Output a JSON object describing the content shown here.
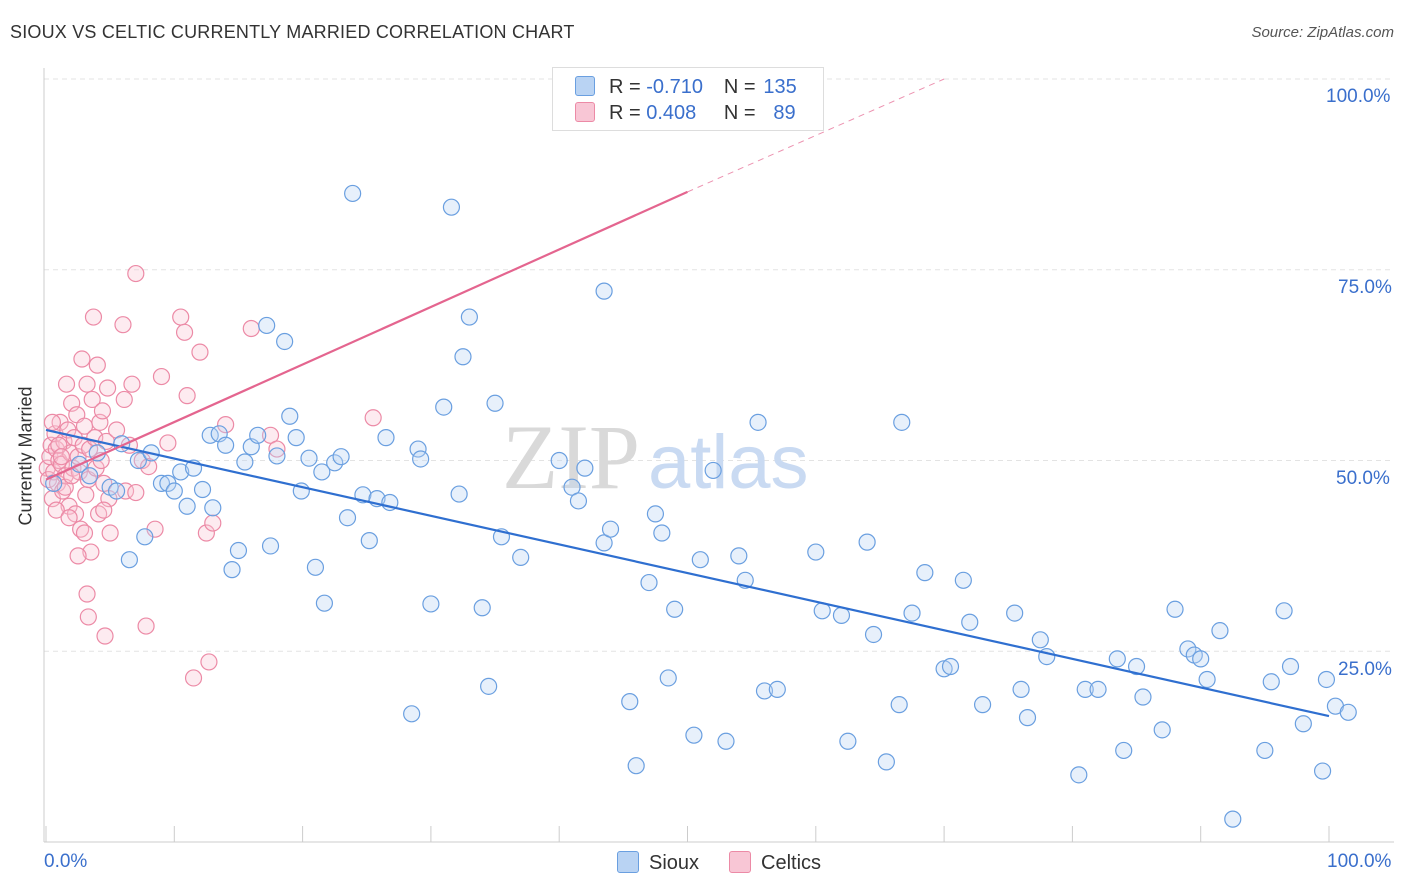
{
  "title": "SIOUX VS CELTIC CURRENTLY MARRIED CORRELATION CHART",
  "source": "Source: ZipAtlas.com",
  "watermark": {
    "zip": "ZIP",
    "atlas": "atlas"
  },
  "legend": {
    "series": [
      {
        "name": "Sioux",
        "r_label": "R =",
        "r_value": "-0.710",
        "n_label": "N =",
        "n_value": "135",
        "color": "#6a9fe0"
      },
      {
        "name": "Celtics",
        "r_label": "R =",
        "r_value": "0.408",
        "n_label": "N =",
        "n_value": "89",
        "color": "#ec8aa6"
      }
    ]
  },
  "chart_data": {
    "type": "scatter",
    "title": "SIOUX VS CELTIC CURRENTLY MARRIED CORRELATION CHART",
    "xlabel": "",
    "ylabel": "Currently Married",
    "xlim": [
      0,
      100
    ],
    "ylim": [
      0,
      100
    ],
    "x_tick_labels": [
      "0.0%",
      "100.0%"
    ],
    "y_tick_labels": [
      {
        "value": 100,
        "label": "100.0%"
      },
      {
        "value": 75,
        "label": "75.0%"
      },
      {
        "value": 50,
        "label": "50.0%"
      },
      {
        "value": 25,
        "label": "25.0%"
      }
    ],
    "series": [
      {
        "name": "Sioux",
        "color": "#6a9fe0",
        "trend": {
          "x1": 0,
          "y1": 54,
          "x2": 100,
          "y2": 16.5,
          "color": "#2f6fd0"
        },
        "points": [
          [
            0.6,
            47.0
          ],
          [
            2.6,
            49.5
          ],
          [
            3.4,
            48.0
          ],
          [
            4.0,
            51.0
          ],
          [
            5.0,
            46.5
          ],
          [
            5.5,
            46.0
          ],
          [
            5.9,
            52.2
          ],
          [
            6.5,
            37.0
          ],
          [
            7.2,
            50.0
          ],
          [
            7.7,
            40.0
          ],
          [
            8.2,
            51.0
          ],
          [
            9.0,
            47.0
          ],
          [
            9.5,
            47.0
          ],
          [
            10.0,
            46.0
          ],
          [
            10.5,
            48.5
          ],
          [
            11.0,
            44.0
          ],
          [
            11.5,
            49.0
          ],
          [
            12.2,
            46.2
          ],
          [
            12.8,
            53.3
          ],
          [
            13.0,
            43.8
          ],
          [
            13.5,
            53.5
          ],
          [
            14.0,
            52.0
          ],
          [
            14.5,
            35.7
          ],
          [
            15.0,
            38.2
          ],
          [
            15.5,
            49.8
          ],
          [
            16.0,
            51.8
          ],
          [
            16.5,
            53.3
          ],
          [
            17.2,
            67.7
          ],
          [
            17.5,
            38.8
          ],
          [
            18.0,
            50.6
          ],
          [
            18.6,
            65.6
          ],
          [
            19.0,
            55.8
          ],
          [
            19.5,
            53.0
          ],
          [
            19.9,
            46.0
          ],
          [
            20.5,
            50.3
          ],
          [
            21.0,
            36.0
          ],
          [
            21.5,
            48.5
          ],
          [
            21.7,
            31.3
          ],
          [
            22.5,
            49.7
          ],
          [
            23.0,
            50.5
          ],
          [
            23.5,
            42.5
          ],
          [
            23.9,
            85.0
          ],
          [
            24.7,
            45.5
          ],
          [
            25.2,
            39.5
          ],
          [
            25.8,
            45.0
          ],
          [
            26.5,
            53.0
          ],
          [
            26.8,
            44.5
          ],
          [
            28.5,
            16.8
          ],
          [
            29.0,
            51.5
          ],
          [
            29.2,
            50.2
          ],
          [
            30.0,
            31.2
          ],
          [
            31.0,
            57.0
          ],
          [
            31.6,
            83.2
          ],
          [
            32.2,
            45.6
          ],
          [
            32.5,
            63.6
          ],
          [
            33.0,
            68.8
          ],
          [
            34.0,
            30.7
          ],
          [
            34.5,
            20.4
          ],
          [
            35.0,
            57.5
          ],
          [
            35.5,
            40.0
          ],
          [
            37.0,
            37.3
          ],
          [
            40.0,
            50.0
          ],
          [
            41.0,
            46.5
          ],
          [
            41.5,
            44.7
          ],
          [
            42.0,
            49.0
          ],
          [
            43.5,
            72.2
          ],
          [
            43.5,
            39.2
          ],
          [
            44.0,
            41.0
          ],
          [
            45.5,
            18.4
          ],
          [
            46.0,
            10.0
          ],
          [
            47.0,
            34.0
          ],
          [
            47.5,
            43.0
          ],
          [
            48.0,
            40.5
          ],
          [
            48.5,
            21.5
          ],
          [
            49.0,
            30.5
          ],
          [
            50.5,
            14.0
          ],
          [
            51.0,
            37.0
          ],
          [
            52.0,
            48.7
          ],
          [
            53.0,
            13.2
          ],
          [
            54.0,
            37.5
          ],
          [
            54.5,
            34.3
          ],
          [
            55.5,
            55.0
          ],
          [
            56.0,
            19.8
          ],
          [
            57.0,
            20.0
          ],
          [
            60.0,
            38.0
          ],
          [
            60.5,
            30.3
          ],
          [
            62.0,
            29.7
          ],
          [
            62.5,
            13.2
          ],
          [
            64.0,
            39.3
          ],
          [
            64.5,
            27.2
          ],
          [
            65.5,
            10.5
          ],
          [
            66.5,
            18.0
          ],
          [
            66.7,
            55.0
          ],
          [
            67.5,
            30.0
          ],
          [
            68.5,
            35.3
          ],
          [
            70.0,
            22.7
          ],
          [
            70.5,
            23.0
          ],
          [
            71.5,
            34.3
          ],
          [
            72.0,
            28.8
          ],
          [
            73.0,
            18.0
          ],
          [
            75.5,
            30.0
          ],
          [
            76.0,
            20.0
          ],
          [
            76.5,
            16.3
          ],
          [
            77.5,
            26.5
          ],
          [
            78.0,
            24.3
          ],
          [
            80.5,
            8.8
          ],
          [
            81.0,
            20.0
          ],
          [
            82.0,
            20.0
          ],
          [
            83.5,
            24.0
          ],
          [
            84.0,
            12.0
          ],
          [
            85.0,
            23.0
          ],
          [
            85.5,
            19.0
          ],
          [
            87.0,
            14.7
          ],
          [
            88.0,
            30.5
          ],
          [
            89.0,
            25.3
          ],
          [
            89.5,
            24.5
          ],
          [
            90.0,
            24.0
          ],
          [
            90.5,
            21.3
          ],
          [
            91.5,
            27.7
          ],
          [
            92.5,
            3.0
          ],
          [
            95.0,
            12.0
          ],
          [
            95.5,
            21.0
          ],
          [
            96.5,
            30.3
          ],
          [
            97.0,
            23.0
          ],
          [
            98.0,
            15.5
          ],
          [
            99.5,
            9.3
          ],
          [
            99.8,
            21.3
          ],
          [
            100.5,
            17.8
          ],
          [
            101.5,
            17.0
          ]
        ]
      },
      {
        "name": "Celtics",
        "color": "#ec8aa6",
        "trend": {
          "x1": 0,
          "y1": 47.5,
          "x2": 50,
          "y2": 85.2,
          "dash_x2": 70,
          "dash_y2": 100,
          "color": "#e4658f"
        },
        "points": [
          [
            0.1,
            49.0
          ],
          [
            0.2,
            47.5
          ],
          [
            0.3,
            50.5
          ],
          [
            0.4,
            52.0
          ],
          [
            0.5,
            45.0
          ],
          [
            0.6,
            48.5
          ],
          [
            0.7,
            53.5
          ],
          [
            0.8,
            51.5
          ],
          [
            0.9,
            47.0
          ],
          [
            1.0,
            50.0
          ],
          [
            1.1,
            55.0
          ],
          [
            1.2,
            49.5
          ],
          [
            1.3,
            46.0
          ],
          [
            1.4,
            52.5
          ],
          [
            1.5,
            48.0
          ],
          [
            1.6,
            60.0
          ],
          [
            1.7,
            54.0
          ],
          [
            1.8,
            44.0
          ],
          [
            1.9,
            51.0
          ],
          [
            2.0,
            57.5
          ],
          [
            2.1,
            49.0
          ],
          [
            2.2,
            53.0
          ],
          [
            2.3,
            43.0
          ],
          [
            2.4,
            56.0
          ],
          [
            2.5,
            50.5
          ],
          [
            2.6,
            48.5
          ],
          [
            2.7,
            41.0
          ],
          [
            2.8,
            63.3
          ],
          [
            2.9,
            52.0
          ],
          [
            3.0,
            54.5
          ],
          [
            3.1,
            45.5
          ],
          [
            3.2,
            60.0
          ],
          [
            3.3,
            47.5
          ],
          [
            3.4,
            51.5
          ],
          [
            3.5,
            38.0
          ],
          [
            3.6,
            58.0
          ],
          [
            3.7,
            68.8
          ],
          [
            3.8,
            53.0
          ],
          [
            3.9,
            49.0
          ],
          [
            4.0,
            62.5
          ],
          [
            4.1,
            43.0
          ],
          [
            4.2,
            55.0
          ],
          [
            4.3,
            50.0
          ],
          [
            4.4,
            56.5
          ],
          [
            4.5,
            47.0
          ],
          [
            4.6,
            27.0
          ],
          [
            4.7,
            52.5
          ],
          [
            4.8,
            59.5
          ],
          [
            4.9,
            45.0
          ],
          [
            5.0,
            40.5
          ],
          [
            5.5,
            54.0
          ],
          [
            6.0,
            67.8
          ],
          [
            6.1,
            58.0
          ],
          [
            6.2,
            46.0
          ],
          [
            6.5,
            52.0
          ],
          [
            6.7,
            60.0
          ],
          [
            7.0,
            45.8
          ],
          [
            7.5,
            50.0
          ],
          [
            7.8,
            28.3
          ],
          [
            8.0,
            49.2
          ],
          [
            8.5,
            41.0
          ],
          [
            9.0,
            61.0
          ],
          [
            9.5,
            52.3
          ],
          [
            10.5,
            68.8
          ],
          [
            10.8,
            66.8
          ],
          [
            11.0,
            58.5
          ],
          [
            7.0,
            74.5
          ],
          [
            11.5,
            21.5
          ],
          [
            12.0,
            64.2
          ],
          [
            12.5,
            40.5
          ],
          [
            12.7,
            23.6
          ],
          [
            13.0,
            41.8
          ],
          [
            14.0,
            54.7
          ],
          [
            16.0,
            67.3
          ],
          [
            17.5,
            53.3
          ],
          [
            18.0,
            51.5
          ],
          [
            25.5,
            55.6
          ],
          [
            2.5,
            37.5
          ],
          [
            3.2,
            32.5
          ],
          [
            3.3,
            29.5
          ],
          [
            1.0,
            52.0
          ],
          [
            1.5,
            46.5
          ],
          [
            2.0,
            48.0
          ],
          [
            0.8,
            43.5
          ],
          [
            1.2,
            50.5
          ],
          [
            0.5,
            55.0
          ],
          [
            3.0,
            40.5
          ],
          [
            4.5,
            43.5
          ],
          [
            1.8,
            42.5
          ]
        ]
      }
    ]
  }
}
